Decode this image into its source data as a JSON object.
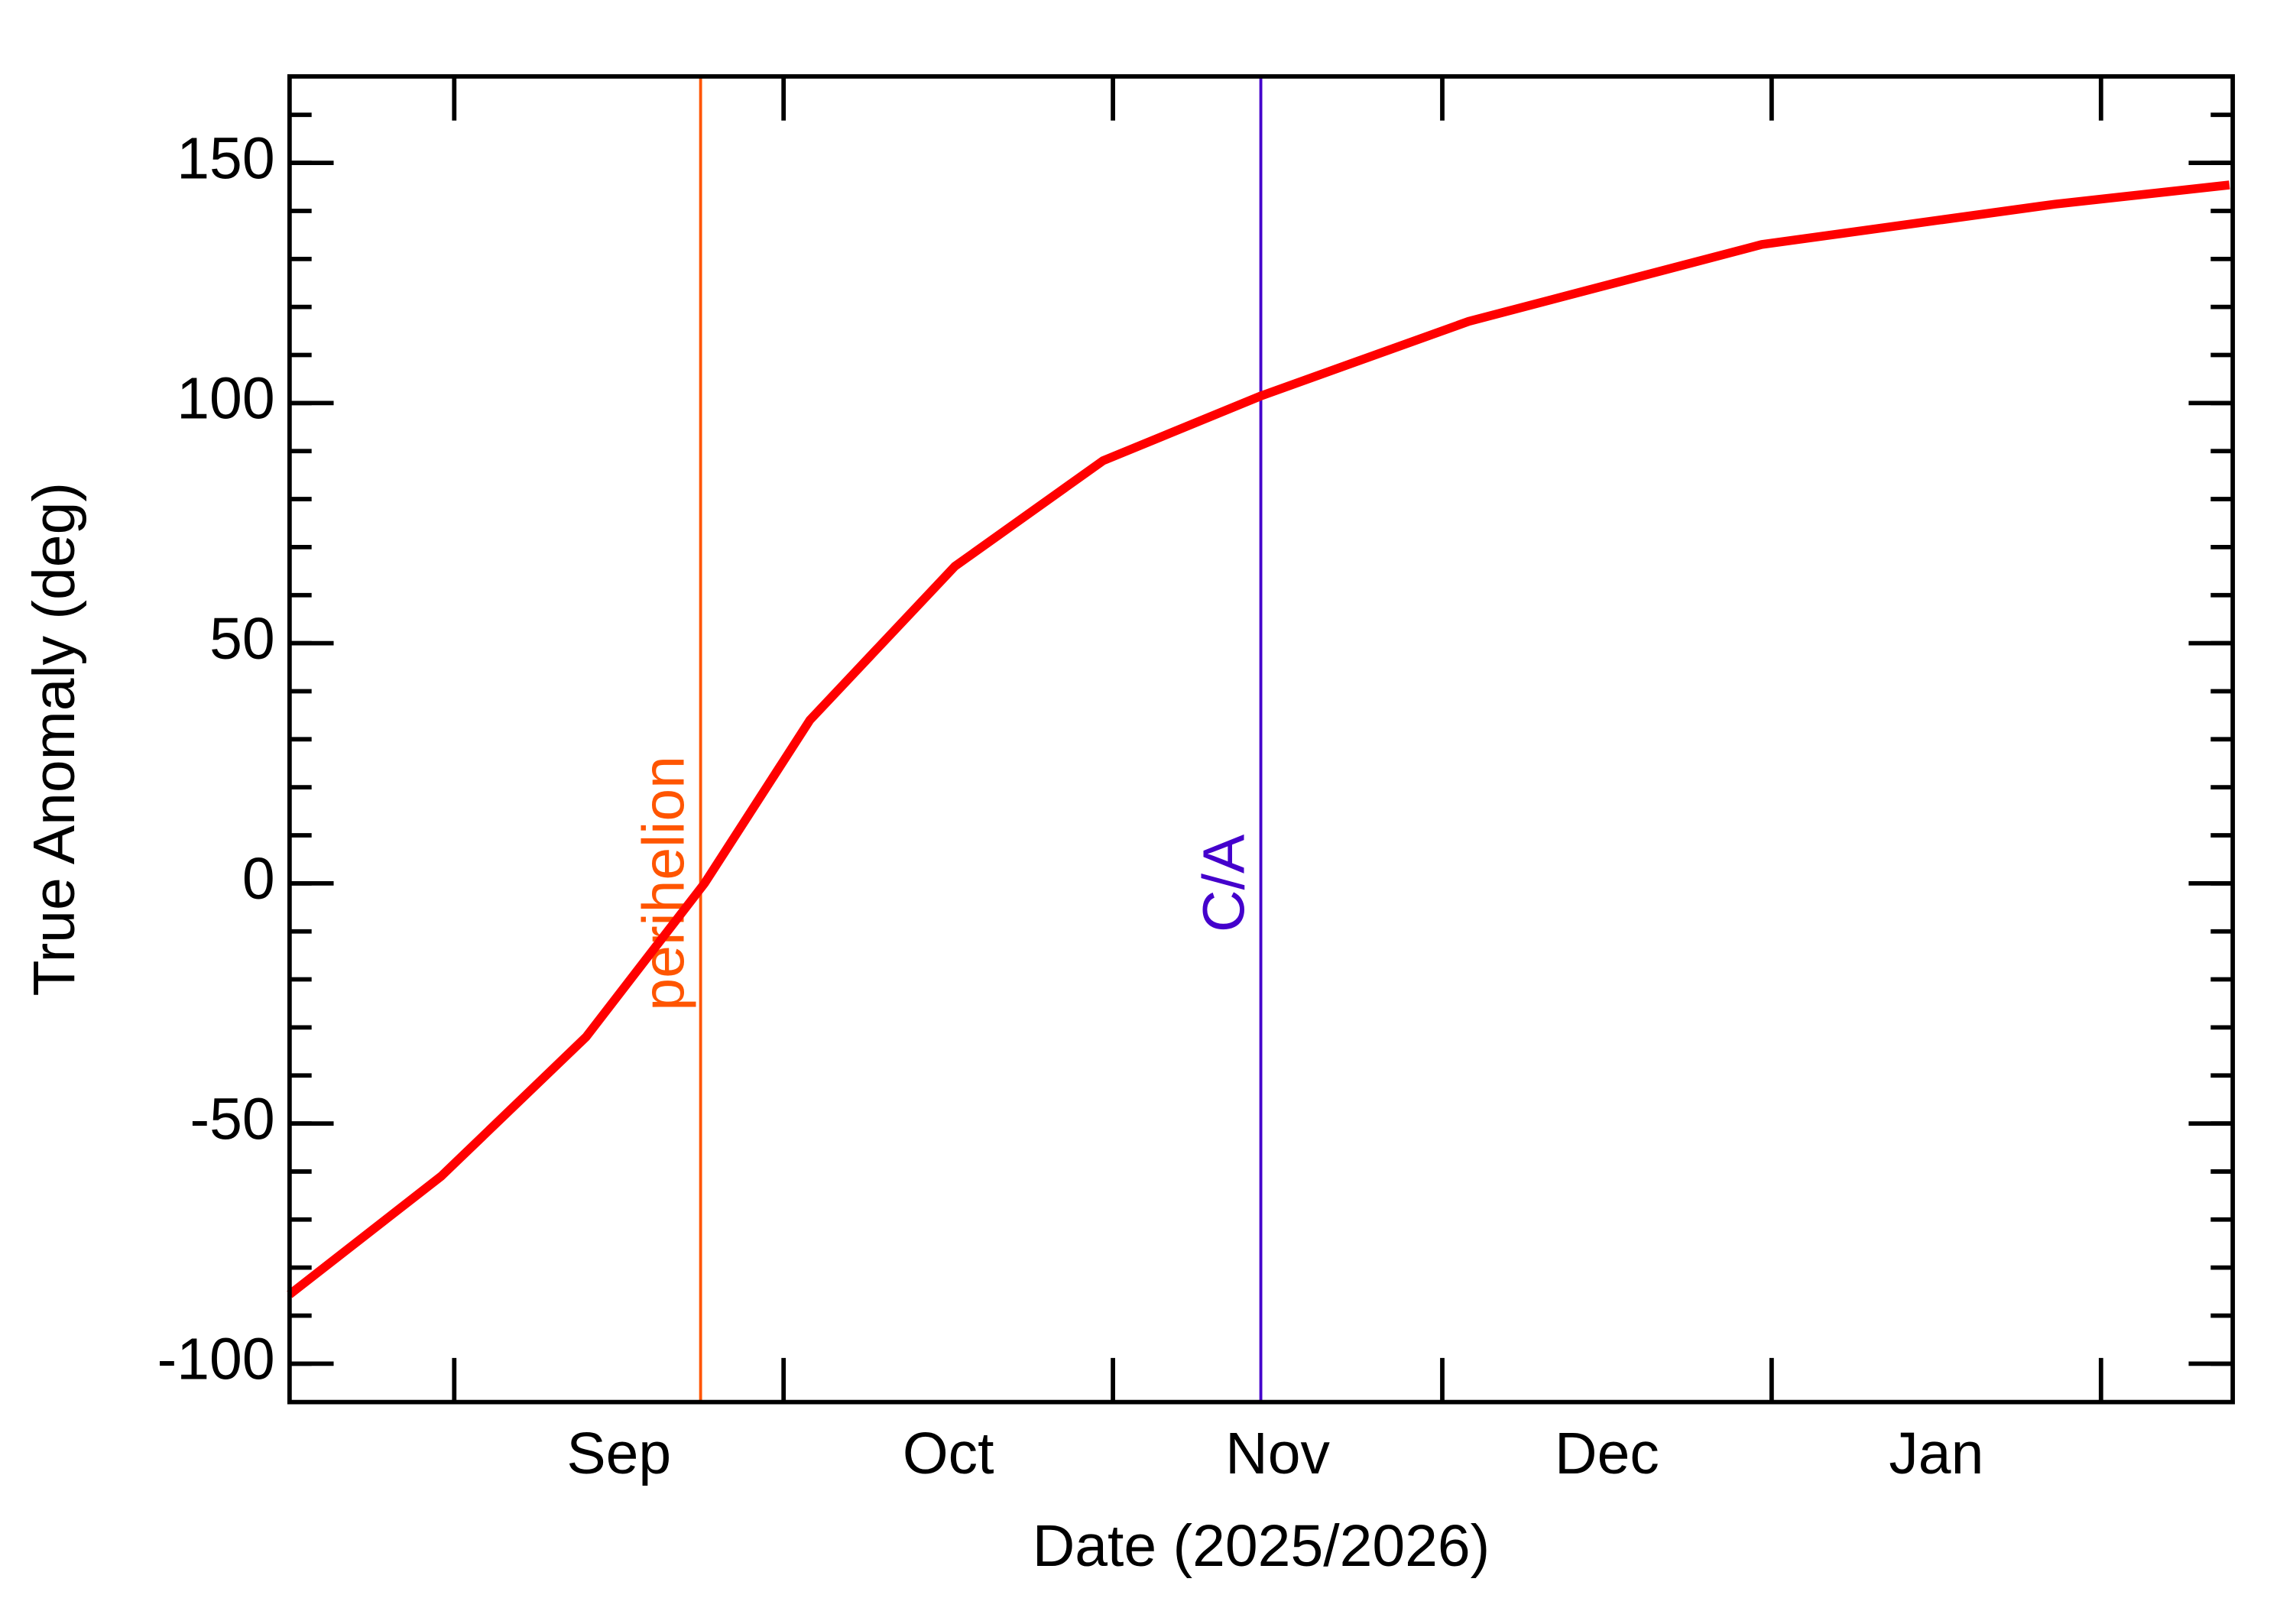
{
  "chart_data": {
    "type": "line",
    "x_label": "Date (2025/2026)",
    "y_label": "True Anomaly (deg)",
    "x": [
      8.5,
      8.96,
      9.4,
      9.76,
      10.08,
      10.52,
      10.97,
      11.45,
      12.08,
      12.97,
      13.86,
      14.39
    ],
    "series": [
      {
        "color": "#ff0000",
        "values": [
          -85.6,
          -61,
          -32,
          0,
          34,
          66,
          88,
          101.5,
          117,
          133,
          141.4,
          145.4
        ]
      }
    ],
    "xlim": [
      8.5,
      14.4
    ],
    "ylim": [
      -108,
      168
    ],
    "xticks": [
      {
        "value": 9.5,
        "label": "Sep"
      },
      {
        "value": 10.5,
        "label": "Oct"
      },
      {
        "value": 11.5,
        "label": "Nov"
      },
      {
        "value": 12.5,
        "label": "Dec"
      },
      {
        "value": 13.5,
        "label": "Jan"
      }
    ],
    "xtick_marks": [
      9,
      10,
      11,
      12,
      13,
      14
    ],
    "yticks": [
      -100,
      -50,
      0,
      50,
      100,
      150
    ],
    "yminorticks": [
      -100,
      -90,
      -80,
      -70,
      -60,
      -50,
      -40,
      -30,
      -20,
      -10,
      0,
      10,
      20,
      30,
      40,
      50,
      60,
      70,
      80,
      90,
      100,
      110,
      120,
      130,
      140,
      150,
      160
    ],
    "annotations": [
      {
        "x": 9.748,
        "label": "perihelion",
        "color": "#ff5500"
      },
      {
        "x": 11.449,
        "label": "C/A",
        "color": "#4400cc"
      }
    ]
  }
}
